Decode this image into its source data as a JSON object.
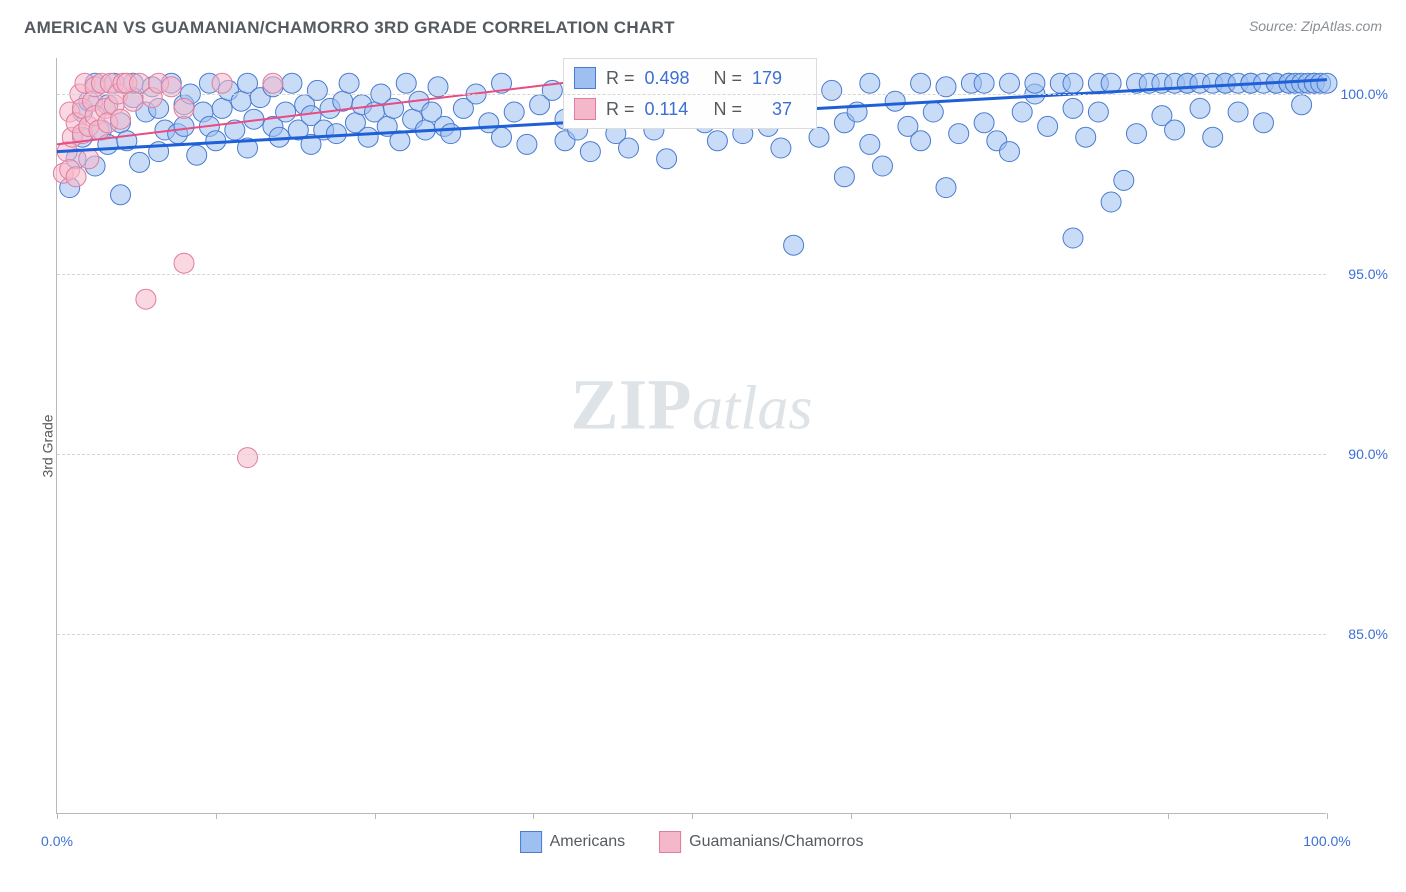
{
  "header": {
    "title": "AMERICAN VS GUAMANIAN/CHAMORRO 3RD GRADE CORRELATION CHART",
    "source": "Source: ZipAtlas.com"
  },
  "watermark": {
    "prefix": "ZIP",
    "suffix": "atlas"
  },
  "chart": {
    "type": "scatter",
    "ylabel": "3rd Grade",
    "xlim": [
      0,
      100
    ],
    "ylim": [
      80,
      101
    ],
    "xticks": [
      0,
      12.5,
      25,
      37.5,
      50,
      62.5,
      75,
      87.5,
      100
    ],
    "xtick_labels": {
      "0": "0.0%",
      "100": "100.0%"
    },
    "yticks": [
      85.0,
      90.0,
      95.0,
      100.0
    ],
    "ytick_labels": [
      "85.0%",
      "90.0%",
      "95.0%",
      "100.0%"
    ],
    "background_color": "#ffffff",
    "grid_color": "#d6d6d6",
    "axis_color": "#b8b8b8",
    "label_color": "#555a5f",
    "tick_label_color": "#3b6fd6",
    "marker_radius": 10,
    "marker_opacity": 0.55,
    "series": [
      {
        "name": "Americans",
        "color_fill": "#9dc0f0",
        "color_stroke": "#4a7bd0",
        "R": "0.498",
        "N": "179",
        "trend": {
          "x1": 0,
          "y1": 98.4,
          "x2": 100,
          "y2": 100.4,
          "stroke": "#1f5fd8",
          "width": 3
        },
        "points": [
          [
            1,
            97.4
          ],
          [
            1.5,
            98.2
          ],
          [
            2,
            98.8
          ],
          [
            2,
            99.5
          ],
          [
            2.5,
            99.8
          ],
          [
            3,
            100.3
          ],
          [
            3,
            98.0
          ],
          [
            3.5,
            99.0
          ],
          [
            4,
            99.7
          ],
          [
            4,
            98.6
          ],
          [
            4.5,
            100.3
          ],
          [
            5,
            97.2
          ],
          [
            5,
            99.2
          ],
          [
            5.5,
            98.7
          ],
          [
            6,
            99.9
          ],
          [
            6,
            100.3
          ],
          [
            6.5,
            98.1
          ],
          [
            7,
            99.5
          ],
          [
            7.5,
            100.2
          ],
          [
            8,
            98.4
          ],
          [
            8,
            99.6
          ],
          [
            8.5,
            99.0
          ],
          [
            9,
            100.3
          ],
          [
            9.5,
            98.9
          ],
          [
            10,
            99.7
          ],
          [
            10,
            99.1
          ],
          [
            10.5,
            100.0
          ],
          [
            11,
            98.3
          ],
          [
            11.5,
            99.5
          ],
          [
            12,
            99.1
          ],
          [
            12,
            100.3
          ],
          [
            12.5,
            98.7
          ],
          [
            13,
            99.6
          ],
          [
            13.5,
            100.1
          ],
          [
            14,
            99.0
          ],
          [
            14.5,
            99.8
          ],
          [
            15,
            98.5
          ],
          [
            15,
            100.3
          ],
          [
            15.5,
            99.3
          ],
          [
            16,
            99.9
          ],
          [
            17,
            99.1
          ],
          [
            17,
            100.2
          ],
          [
            17.5,
            98.8
          ],
          [
            18,
            99.5
          ],
          [
            18.5,
            100.3
          ],
          [
            19,
            99.0
          ],
          [
            19.5,
            99.7
          ],
          [
            20,
            98.6
          ],
          [
            20,
            99.4
          ],
          [
            20.5,
            100.1
          ],
          [
            21,
            99.0
          ],
          [
            21.5,
            99.6
          ],
          [
            22,
            98.9
          ],
          [
            22.5,
            99.8
          ],
          [
            23,
            100.3
          ],
          [
            23.5,
            99.2
          ],
          [
            24,
            99.7
          ],
          [
            24.5,
            98.8
          ],
          [
            25,
            99.5
          ],
          [
            25.5,
            100.0
          ],
          [
            26,
            99.1
          ],
          [
            26.5,
            99.6
          ],
          [
            27,
            98.7
          ],
          [
            27.5,
            100.3
          ],
          [
            28,
            99.3
          ],
          [
            28.5,
            99.8
          ],
          [
            29,
            99.0
          ],
          [
            29.5,
            99.5
          ],
          [
            30,
            100.2
          ],
          [
            30.5,
            99.1
          ],
          [
            31,
            98.9
          ],
          [
            32,
            99.6
          ],
          [
            33,
            100.0
          ],
          [
            34,
            99.2
          ],
          [
            35,
            100.3
          ],
          [
            35,
            98.8
          ],
          [
            36,
            99.5
          ],
          [
            37,
            98.6
          ],
          [
            38,
            99.7
          ],
          [
            39,
            100.1
          ],
          [
            40,
            99.3
          ],
          [
            40,
            98.7
          ],
          [
            41,
            99.0
          ],
          [
            42,
            98.4
          ],
          [
            43,
            99.8
          ],
          [
            44,
            98.9
          ],
          [
            45,
            100.3
          ],
          [
            45,
            98.5
          ],
          [
            46,
            99.4
          ],
          [
            47,
            99.0
          ],
          [
            48,
            98.2
          ],
          [
            49,
            99.6
          ],
          [
            50,
            100.0
          ],
          [
            51,
            99.2
          ],
          [
            52,
            98.7
          ],
          [
            53,
            99.5
          ],
          [
            54,
            98.9
          ],
          [
            55,
            100.3
          ],
          [
            56,
            99.1
          ],
          [
            57,
            98.5
          ],
          [
            58,
            95.8
          ],
          [
            59,
            99.7
          ],
          [
            60,
            98.8
          ],
          [
            61,
            100.1
          ],
          [
            62,
            99.2
          ],
          [
            62,
            97.7
          ],
          [
            63,
            99.5
          ],
          [
            64,
            98.6
          ],
          [
            64,
            100.3
          ],
          [
            65,
            98.0
          ],
          [
            66,
            99.8
          ],
          [
            67,
            99.1
          ],
          [
            68,
            100.3
          ],
          [
            68,
            98.7
          ],
          [
            69,
            99.5
          ],
          [
            70,
            100.2
          ],
          [
            70,
            97.4
          ],
          [
            71,
            98.9
          ],
          [
            72,
            100.3
          ],
          [
            73,
            99.2
          ],
          [
            73,
            100.3
          ],
          [
            74,
            98.7
          ],
          [
            75,
            100.3
          ],
          [
            75,
            98.4
          ],
          [
            76,
            99.5
          ],
          [
            77,
            100.0
          ],
          [
            77,
            100.3
          ],
          [
            78,
            99.1
          ],
          [
            79,
            100.3
          ],
          [
            80,
            99.6
          ],
          [
            80,
            100.3
          ],
          [
            80,
            96.0
          ],
          [
            81,
            98.8
          ],
          [
            82,
            99.5
          ],
          [
            82,
            100.3
          ],
          [
            83,
            100.3
          ],
          [
            83,
            97.0
          ],
          [
            84,
            97.6
          ],
          [
            85,
            100.3
          ],
          [
            85,
            98.9
          ],
          [
            86,
            100.3
          ],
          [
            87,
            99.4
          ],
          [
            87,
            100.3
          ],
          [
            88,
            100.3
          ],
          [
            88,
            99.0
          ],
          [
            89,
            100.3
          ],
          [
            89,
            100.3
          ],
          [
            90,
            99.6
          ],
          [
            90,
            100.3
          ],
          [
            91,
            100.3
          ],
          [
            91,
            98.8
          ],
          [
            92,
            100.3
          ],
          [
            92,
            100.3
          ],
          [
            93,
            99.5
          ],
          [
            93,
            100.3
          ],
          [
            94,
            100.3
          ],
          [
            94,
            100.3
          ],
          [
            95,
            100.3
          ],
          [
            95,
            99.2
          ],
          [
            96,
            100.3
          ],
          [
            96,
            100.3
          ],
          [
            97,
            100.3
          ],
          [
            97,
            100.3
          ],
          [
            97.5,
            100.3
          ],
          [
            98,
            100.3
          ],
          [
            98,
            99.7
          ],
          [
            98.5,
            100.3
          ],
          [
            99,
            100.3
          ],
          [
            99,
            100.3
          ],
          [
            99.5,
            100.3
          ],
          [
            100,
            100.3
          ]
        ]
      },
      {
        "name": "Guamanians/Chamorros",
        "color_fill": "#f5b8ca",
        "color_stroke": "#e07d9e",
        "R": "0.114",
        "N": "37",
        "trend": {
          "x1": 0,
          "y1": 98.6,
          "x2": 42,
          "y2": 100.4,
          "stroke": "#e94b82",
          "width": 2
        },
        "points": [
          [
            0.5,
            97.8
          ],
          [
            0.8,
            98.4
          ],
          [
            1,
            99.5
          ],
          [
            1,
            97.9
          ],
          [
            1.2,
            98.8
          ],
          [
            1.5,
            99.2
          ],
          [
            1.5,
            97.7
          ],
          [
            1.8,
            100.0
          ],
          [
            2,
            99.6
          ],
          [
            2,
            98.9
          ],
          [
            2.2,
            100.3
          ],
          [
            2.5,
            99.1
          ],
          [
            2.5,
            98.2
          ],
          [
            2.8,
            99.8
          ],
          [
            3,
            99.4
          ],
          [
            3,
            100.2
          ],
          [
            3.3,
            99.0
          ],
          [
            3.5,
            100.3
          ],
          [
            3.8,
            99.6
          ],
          [
            4,
            99.2
          ],
          [
            4.2,
            100.3
          ],
          [
            4.5,
            99.7
          ],
          [
            4.8,
            100.0
          ],
          [
            5,
            99.3
          ],
          [
            5.2,
            100.3
          ],
          [
            5.5,
            100.3
          ],
          [
            6,
            99.8
          ],
          [
            6.5,
            100.3
          ],
          [
            7,
            94.3
          ],
          [
            7.5,
            99.9
          ],
          [
            8,
            100.3
          ],
          [
            9,
            100.2
          ],
          [
            10,
            99.6
          ],
          [
            10,
            95.3
          ],
          [
            13,
            100.3
          ],
          [
            15,
            89.9
          ],
          [
            17,
            100.3
          ]
        ]
      }
    ],
    "bottom_legend": [
      {
        "label": "Americans",
        "fill": "#9dc0f0",
        "stroke": "#4a7bd0"
      },
      {
        "label": "Guamanians/Chamorros",
        "fill": "#f5b8ca",
        "stroke": "#e07d9e"
      }
    ]
  }
}
